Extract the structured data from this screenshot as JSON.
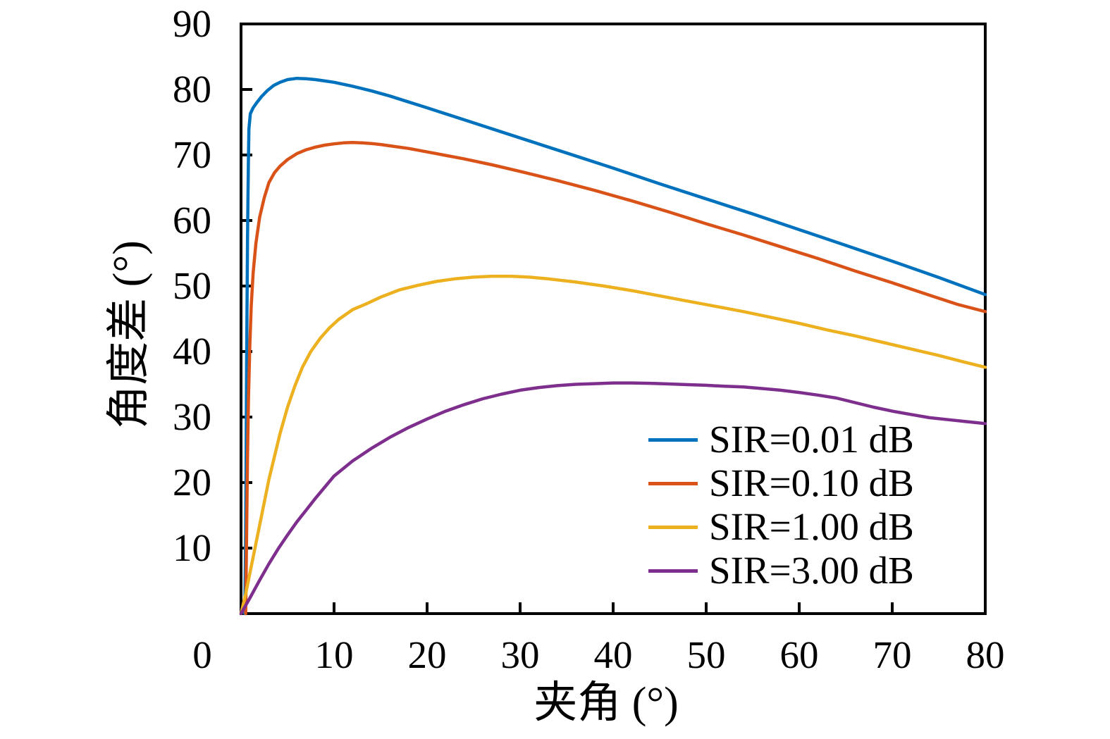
{
  "figure": {
    "background": "#ffffff",
    "axis_color": "#000000"
  },
  "chart_data": {
    "type": "line",
    "title": "",
    "xlabel": "夹角 (°)",
    "ylabel": "角度差 (°)",
    "xlim": [
      0,
      80
    ],
    "ylim": [
      0,
      90
    ],
    "x_ticks": [
      0,
      10,
      20,
      30,
      40,
      50,
      60,
      70,
      80
    ],
    "x_tick_labels": [
      "0",
      "10",
      "20",
      "30",
      "40",
      "50",
      "60",
      "70",
      "80"
    ],
    "y_ticks": [
      10,
      20,
      30,
      40,
      50,
      60,
      70,
      80,
      90
    ],
    "y_tick_labels": [
      "10",
      "20",
      "30",
      "40",
      "50",
      "60",
      "70",
      "80",
      "90"
    ],
    "grid": false,
    "legend_position": "inside lower right",
    "series": [
      {
        "name": "SIR=0.01 dB",
        "color": "#0072BD",
        "points": [
          [
            0.4,
            0
          ],
          [
            0.5,
            12
          ],
          [
            0.55,
            25
          ],
          [
            0.6,
            38
          ],
          [
            0.65,
            48
          ],
          [
            0.7,
            57
          ],
          [
            0.75,
            64
          ],
          [
            0.8,
            70
          ],
          [
            0.85,
            74
          ],
          [
            1.0,
            76.3
          ],
          [
            1.3,
            77.2
          ],
          [
            1.7,
            78.0
          ],
          [
            2.2,
            78.9
          ],
          [
            2.8,
            79.8
          ],
          [
            3.5,
            80.6
          ],
          [
            4.2,
            81.1
          ],
          [
            5,
            81.5
          ],
          [
            6,
            81.7
          ],
          [
            7,
            81.65
          ],
          [
            8,
            81.5
          ],
          [
            9,
            81.3
          ],
          [
            10,
            81.1
          ],
          [
            12,
            80.5
          ],
          [
            14,
            79.8
          ],
          [
            16,
            79.0
          ],
          [
            18,
            78.1
          ],
          [
            20,
            77.2
          ],
          [
            25,
            74.9
          ],
          [
            30,
            72.6
          ],
          [
            35,
            70.3
          ],
          [
            40,
            68.0
          ],
          [
            45,
            65.6
          ],
          [
            50,
            63.3
          ],
          [
            55,
            61.0
          ],
          [
            60,
            58.6
          ],
          [
            65,
            56.2
          ],
          [
            70,
            53.8
          ],
          [
            75,
            51.3
          ],
          [
            80,
            48.7
          ]
        ]
      },
      {
        "name": "SIR=0.10 dB",
        "color": "#D95319",
        "points": [
          [
            0.5,
            0
          ],
          [
            0.6,
            12
          ],
          [
            0.7,
            24
          ],
          [
            0.8,
            33
          ],
          [
            0.95,
            41
          ],
          [
            1.1,
            47
          ],
          [
            1.3,
            52
          ],
          [
            1.6,
            56.5
          ],
          [
            2.0,
            60.5
          ],
          [
            2.5,
            63.5
          ],
          [
            3.0,
            65.8
          ],
          [
            3.6,
            67.3
          ],
          [
            4.2,
            68.3
          ],
          [
            5,
            69.3
          ],
          [
            6,
            70.2
          ],
          [
            7,
            70.8
          ],
          [
            8,
            71.2
          ],
          [
            9,
            71.5
          ],
          [
            10,
            71.7
          ],
          [
            11,
            71.85
          ],
          [
            12,
            71.9
          ],
          [
            13,
            71.85
          ],
          [
            14,
            71.75
          ],
          [
            15,
            71.6
          ],
          [
            16,
            71.4
          ],
          [
            18,
            71.0
          ],
          [
            21,
            70.2
          ],
          [
            24,
            69.4
          ],
          [
            27,
            68.5
          ],
          [
            30,
            67.5
          ],
          [
            34,
            66.1
          ],
          [
            38,
            64.6
          ],
          [
            42,
            63.0
          ],
          [
            46,
            61.3
          ],
          [
            50,
            59.5
          ],
          [
            54,
            57.8
          ],
          [
            58,
            56.0
          ],
          [
            62,
            54.2
          ],
          [
            66,
            52.3
          ],
          [
            70,
            50.5
          ],
          [
            74,
            48.6
          ],
          [
            77,
            47.2
          ],
          [
            80,
            46.1
          ]
        ]
      },
      {
        "name": "SIR=1.00 dB",
        "color": "#EDB120",
        "points": [
          [
            0,
            0
          ],
          [
            0.5,
            3
          ],
          [
            1,
            6.5
          ],
          [
            1.5,
            10
          ],
          [
            2,
            13.5
          ],
          [
            2.5,
            17
          ],
          [
            3,
            20.5
          ],
          [
            3.6,
            24
          ],
          [
            4.2,
            27.5
          ],
          [
            5,
            31.5
          ],
          [
            5.8,
            34.8
          ],
          [
            6.6,
            37.6
          ],
          [
            7.5,
            40
          ],
          [
            8.5,
            42
          ],
          [
            9.5,
            43.6
          ],
          [
            10.5,
            44.9
          ],
          [
            12,
            46.4
          ],
          [
            13.5,
            47.3
          ],
          [
            15,
            48.3
          ],
          [
            17,
            49.4
          ],
          [
            19,
            50.1
          ],
          [
            21,
            50.7
          ],
          [
            23,
            51.1
          ],
          [
            25,
            51.35
          ],
          [
            27,
            51.5
          ],
          [
            29,
            51.5
          ],
          [
            31,
            51.35
          ],
          [
            33,
            51.1
          ],
          [
            36,
            50.6
          ],
          [
            39,
            50.0
          ],
          [
            42,
            49.3
          ],
          [
            45,
            48.5
          ],
          [
            48,
            47.7
          ],
          [
            51,
            46.9
          ],
          [
            54,
            46.1
          ],
          [
            57,
            45.2
          ],
          [
            60,
            44.3
          ],
          [
            63,
            43.3
          ],
          [
            66,
            42.4
          ],
          [
            69,
            41.4
          ],
          [
            72,
            40.4
          ],
          [
            75,
            39.4
          ],
          [
            78,
            38.3
          ],
          [
            80,
            37.6
          ]
        ]
      },
      {
        "name": "SIR=3.00 dB",
        "color": "#7E2F8E",
        "points": [
          [
            0,
            0
          ],
          [
            1,
            2.5
          ],
          [
            2,
            5.1
          ],
          [
            3,
            7.6
          ],
          [
            4,
            9.9
          ],
          [
            5,
            12.0
          ],
          [
            6,
            14.0
          ],
          [
            7,
            15.8
          ],
          [
            8,
            17.6
          ],
          [
            9,
            19.3
          ],
          [
            10,
            21.0
          ],
          [
            12,
            23.3
          ],
          [
            14,
            25.2
          ],
          [
            16,
            26.9
          ],
          [
            18,
            28.4
          ],
          [
            20,
            29.7
          ],
          [
            22,
            30.9
          ],
          [
            24,
            31.9
          ],
          [
            26,
            32.8
          ],
          [
            28,
            33.5
          ],
          [
            30,
            34.1
          ],
          [
            32,
            34.5
          ],
          [
            34,
            34.8
          ],
          [
            36,
            35.0
          ],
          [
            38,
            35.1
          ],
          [
            40,
            35.2
          ],
          [
            42,
            35.2
          ],
          [
            44,
            35.15
          ],
          [
            46,
            35.05
          ],
          [
            48,
            34.95
          ],
          [
            50,
            34.85
          ],
          [
            52,
            34.7
          ],
          [
            54,
            34.6
          ],
          [
            56,
            34.35
          ],
          [
            58,
            34.1
          ],
          [
            60,
            33.75
          ],
          [
            62,
            33.35
          ],
          [
            64,
            32.9
          ],
          [
            66,
            32.2
          ],
          [
            68,
            31.5
          ],
          [
            70,
            30.9
          ],
          [
            72,
            30.4
          ],
          [
            74,
            29.9
          ],
          [
            76,
            29.6
          ],
          [
            78,
            29.3
          ],
          [
            80,
            29.0
          ]
        ]
      }
    ]
  }
}
